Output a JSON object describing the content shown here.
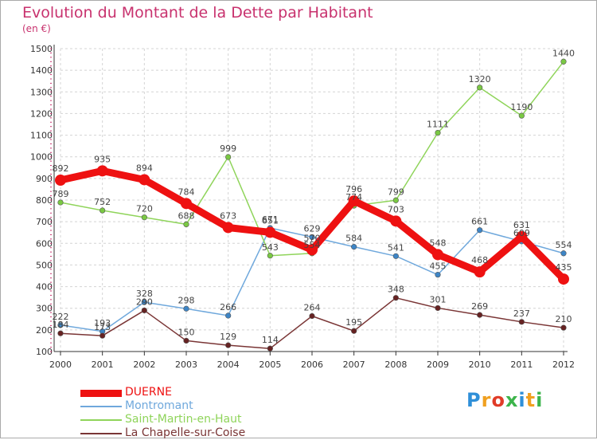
{
  "title": "Evolution du Montant de la Dette par Habitant",
  "subtitle": "(en €)",
  "logo": {
    "text": "Proxiti",
    "letter_colors": [
      "#2f8fd8",
      "#f0a020",
      "#e03c28",
      "#3cb44b",
      "#2f8fd8",
      "#f0a020",
      "#3cb44b"
    ]
  },
  "chart_data": {
    "type": "line",
    "title": "Evolution du Montant de la Dette par Habitant",
    "subtitle": "(en €)",
    "x": [
      "2000",
      "2001",
      "2002",
      "2003",
      "2004",
      "2005",
      "2006",
      "2007",
      "2008",
      "2009",
      "2010",
      "2011",
      "2012"
    ],
    "ylim": [
      100,
      1500
    ],
    "yticks": [
      100,
      200,
      300,
      400,
      500,
      600,
      700,
      800,
      900,
      1000,
      1100,
      1200,
      1300,
      1400,
      1500
    ],
    "grid": true,
    "legend_position": "bottom-left",
    "series": [
      {
        "name": "DUERNE",
        "color": "#ee1111",
        "marker_color": "#ee1111",
        "bold": true,
        "values": [
          892,
          935,
          894,
          784,
          673,
          651,
          570,
          796,
          703,
          548,
          468,
          631,
          435
        ],
        "labels": [
          "892",
          "935",
          "894",
          "784",
          "673",
          "651",
          "570",
          "796",
          "703",
          "548",
          "468",
          "631",
          "435"
        ]
      },
      {
        "name": "Montromant",
        "color": "#6fa8dc",
        "marker_color": "#3d85c6",
        "bold": false,
        "values": [
          222,
          193,
          328,
          298,
          266,
          671,
          629,
          584,
          541,
          455,
          661,
          609,
          554
        ],
        "labels": [
          "222",
          "193",
          "328",
          "298",
          "266",
          "671",
          "629",
          "584",
          "541",
          "455",
          "661",
          "609",
          "554"
        ]
      },
      {
        "name": "Saint-Martin-en-Haut",
        "color": "#8fd45a",
        "marker_color": "#7ac943",
        "bold": false,
        "values": [
          789,
          752,
          720,
          688,
          999,
          543,
          554,
          774,
          799,
          1111,
          1320,
          1190,
          1440
        ],
        "labels": [
          "789",
          "752",
          "720",
          "688",
          "999",
          "543",
          "554",
          "774",
          "799",
          "1111",
          "1320",
          "1190",
          "1440"
        ]
      },
      {
        "name": "La Chapelle-sur-Coise",
        "color": "#7a3535",
        "marker_color": "#662222",
        "bold": false,
        "values": [
          184,
          173,
          290,
          150,
          129,
          114,
          264,
          195,
          348,
          301,
          269,
          237,
          210
        ],
        "labels": [
          "184",
          "173",
          "290",
          "150",
          "129",
          "114",
          "264",
          "195",
          "348",
          "301",
          "269",
          "237",
          "210"
        ]
      }
    ]
  }
}
